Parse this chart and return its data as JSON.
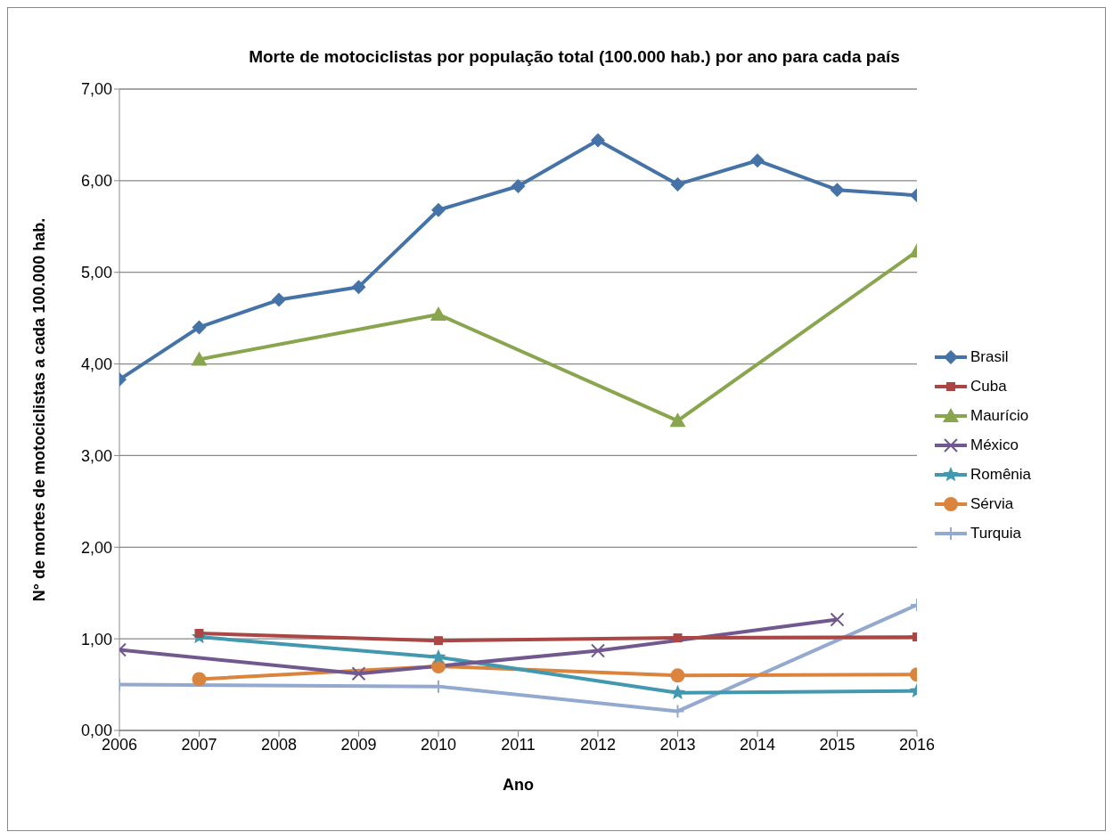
{
  "chart_data": {
    "type": "line",
    "title": "Morte de motociclistas por população total (100.000 hab.) por ano para cada país",
    "xlabel": "Ano",
    "ylabel": "N° de mortes de motociclistas a cada 100.000 hab.",
    "x": [
      2006,
      2007,
      2008,
      2009,
      2010,
      2011,
      2012,
      2013,
      2014,
      2015,
      2016
    ],
    "series": [
      {
        "name": "Brasil",
        "color": "#4572a7",
        "marker": "diamond",
        "values": [
          3.83,
          4.4,
          4.7,
          4.84,
          5.68,
          5.94,
          6.44,
          5.96,
          6.22,
          5.9,
          5.84
        ]
      },
      {
        "name": "Cuba",
        "color": "#aa4643",
        "marker": "square",
        "values": [
          null,
          1.06,
          null,
          null,
          0.98,
          null,
          null,
          1.01,
          null,
          null,
          1.02
        ]
      },
      {
        "name": "Maurício",
        "color": "#89a54e",
        "marker": "triangle",
        "values": [
          null,
          4.05,
          null,
          null,
          4.54,
          null,
          null,
          3.38,
          null,
          null,
          5.23
        ]
      },
      {
        "name": "México",
        "color": "#71588f",
        "marker": "cross",
        "values": [
          0.88,
          null,
          null,
          0.62,
          null,
          null,
          0.87,
          null,
          null,
          1.21,
          null
        ]
      },
      {
        "name": "Romênia",
        "color": "#4198af",
        "marker": "star",
        "values": [
          null,
          1.02,
          null,
          null,
          0.8,
          null,
          null,
          0.41,
          null,
          null,
          0.43
        ]
      },
      {
        "name": "Sérvia",
        "color": "#db843d",
        "marker": "circle",
        "values": [
          null,
          0.56,
          null,
          null,
          0.7,
          null,
          null,
          0.6,
          null,
          null,
          0.61
        ]
      },
      {
        "name": "Turquia",
        "color": "#93a9cf",
        "marker": "plus",
        "values": [
          0.5,
          null,
          null,
          null,
          0.48,
          null,
          null,
          0.21,
          null,
          null,
          1.37
        ]
      }
    ],
    "xlim": [
      2006,
      2016
    ],
    "xticks": [
      2006,
      2007,
      2008,
      2009,
      2010,
      2011,
      2012,
      2013,
      2014,
      2015,
      2016
    ],
    "ylim": [
      0,
      7
    ],
    "yticks": [
      {
        "value": 0,
        "label": "0,00"
      },
      {
        "value": 1,
        "label": "1,00"
      },
      {
        "value": 2,
        "label": "2,00"
      },
      {
        "value": 3,
        "label": "3,00"
      },
      {
        "value": 4,
        "label": "4,00"
      },
      {
        "value": 5,
        "label": "5,00"
      },
      {
        "value": 6,
        "label": "6,00"
      },
      {
        "value": 7,
        "label": "7,00"
      }
    ],
    "grid": "y",
    "legend": "right"
  }
}
